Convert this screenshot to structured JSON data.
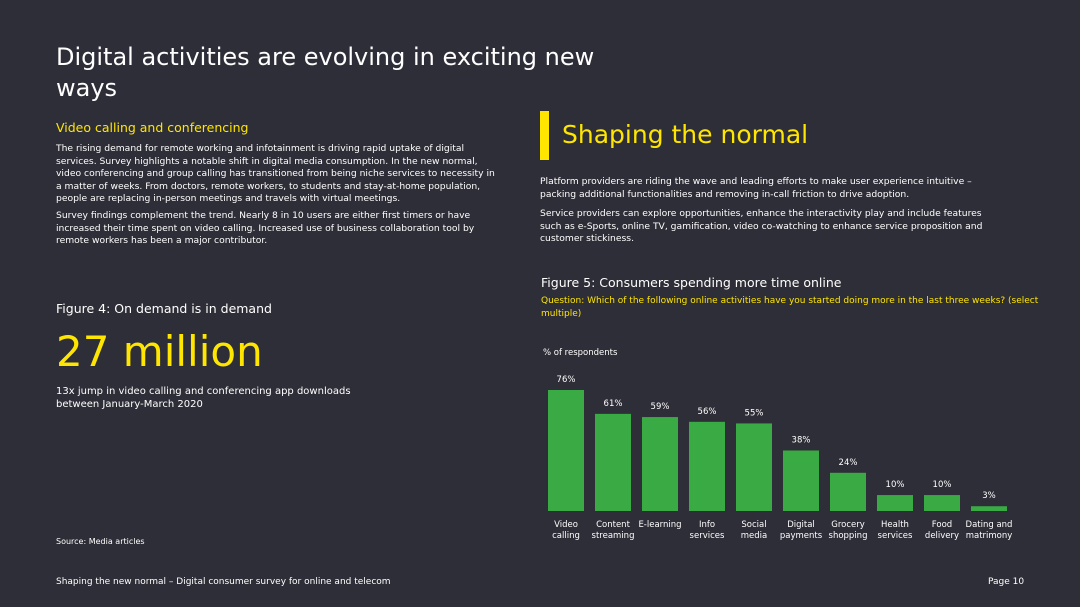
{
  "title": "Digital activities are evolving in exciting new ways",
  "left": {
    "subtitle": "Video calling and conferencing",
    "para1": "The rising demand for remote working and infotainment is driving rapid uptake of digital services. Survey highlights a notable shift in digital media consumption. In the new normal, video conferencing and  group calling has transitioned from being niche services to necessity in a matter of weeks. From doctors, remote workers, to students and stay-at-home population, people are replacing in-person meetings and travels with virtual meetings.",
    "para2": "Survey findings complement the trend. Nearly 8 in 10 users are either first timers or have increased their time spent on video calling. Increased use of business collaboration tool by remote workers has been a major contributor.",
    "fig4_title": "Figure 4: On demand is in demand",
    "big_number": "27 million",
    "fig4_desc": "13x jump in video calling and conferencing app downloads between January-March 2020",
    "source": "Source: Media articles"
  },
  "right": {
    "title": "Shaping the normal",
    "para1": "Platform providers are riding the wave and leading efforts to make user experience intuitive – packing additional functionalities and removing in-call friction to drive adoption.",
    "para2": "Service providers can explore opportunities, enhance the interactivity play and include features such as e-Sports, online TV, gamification, video co-watching to enhance service proposition and customer stickiness.",
    "fig5_title": "Figure 5: Consumers spending more time online",
    "fig5_question": "Question: Which of the following online activities have you started doing more in the last three weeks? (select multiple)"
  },
  "chart_data": {
    "type": "bar",
    "ylabel": "% of respondents",
    "categories": [
      [
        "Video",
        "calling"
      ],
      [
        "Content",
        "streaming"
      ],
      [
        "E-learning"
      ],
      [
        "Info",
        "services"
      ],
      [
        "Social",
        "media"
      ],
      [
        "Digital",
        "payments"
      ],
      [
        "Grocery",
        "shopping"
      ],
      [
        "Health",
        "services"
      ],
      [
        "Food",
        "delivery"
      ],
      [
        "Dating and",
        "matrimony"
      ]
    ],
    "values": [
      76,
      61,
      59,
      56,
      55,
      38,
      24,
      10,
      10,
      3
    ],
    "value_labels": [
      "76%",
      "61%",
      "59%",
      "56%",
      "55%",
      "38%",
      "24%",
      "10%",
      "10%",
      "3%"
    ],
    "bar_color": "#3aaa45",
    "ylim": [
      0,
      76
    ]
  },
  "footer": {
    "left": "Shaping the new normal – Digital consumer survey for online and telecom",
    "right": "Page 10"
  },
  "colors": {
    "background": "#2e2e38",
    "accent": "#ffe600",
    "bar": "#3aaa45"
  }
}
